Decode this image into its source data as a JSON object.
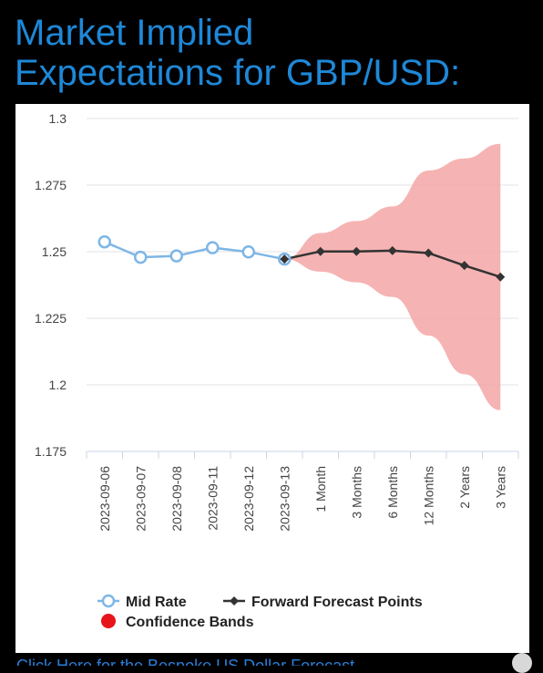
{
  "title_lines": [
    "Market Implied",
    "Expectations for GBP/USD:"
  ],
  "footer_link": "Click Here for the Bespoke US Dollar Forecast",
  "chart_data": {
    "type": "line",
    "categories": [
      "2023-09-06",
      "2023-09-07",
      "2023-09-08",
      "2023-09-11",
      "2023-09-12",
      "2023-09-13",
      "1 Month",
      "3 Months",
      "6 Months",
      "12 Months",
      "2 Years",
      "3 Years"
    ],
    "ylim": [
      1.175,
      1.3
    ],
    "yticks": [
      "1.175",
      "1.2",
      "1.225",
      "1.25",
      "1.275",
      "1.3"
    ],
    "grid": true,
    "legend_position": "bottom",
    "series": [
      {
        "name": "Mid Rate",
        "color": "#7EB6E6",
        "marker": "open-circle",
        "values": [
          1.2537,
          1.2479,
          1.2484,
          1.2515,
          1.2499,
          1.2472,
          null,
          null,
          null,
          null,
          null,
          null
        ]
      },
      {
        "name": "Forward Forecast Points",
        "color": "#333333",
        "marker": "diamond",
        "values": [
          null,
          null,
          null,
          null,
          null,
          1.2472,
          1.2501,
          1.2501,
          1.2504,
          1.2495,
          1.2448,
          1.2405
        ]
      },
      {
        "name": "Confidence Bands",
        "color": "#F4A6A6",
        "legend_color": "#E8141B",
        "type": "band",
        "lower": [
          null,
          null,
          null,
          null,
          null,
          1.2472,
          1.2425,
          1.2385,
          1.233,
          1.2185,
          1.204,
          1.1905
        ],
        "upper": [
          null,
          null,
          null,
          null,
          null,
          1.2472,
          1.257,
          1.2615,
          1.267,
          1.2805,
          1.285,
          1.2905
        ]
      }
    ]
  }
}
